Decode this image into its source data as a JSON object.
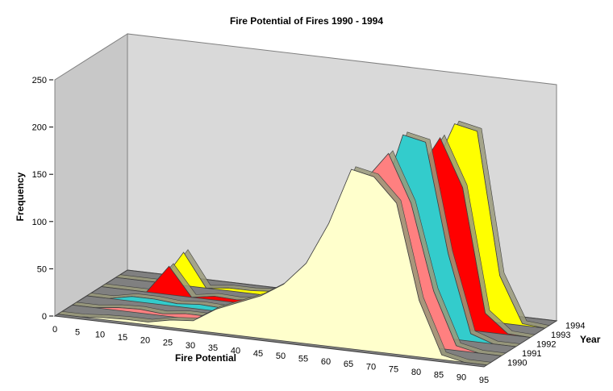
{
  "chart_data": {
    "type": "area",
    "subtype": "3d-area",
    "title": "Fire Potential of Fires 1990 - 1994",
    "xlabel": "Fire Potential",
    "ylabel": "Frequency",
    "zlabel": "Year",
    "ylim": [
      0,
      250
    ],
    "y_ticks": [
      "0",
      "50",
      "100",
      "150",
      "200",
      "250"
    ],
    "x_ticks": [
      "0",
      "5",
      "10",
      "15",
      "20",
      "25",
      "30",
      "35",
      "40",
      "45",
      "50",
      "55",
      "60",
      "65",
      "70",
      "75",
      "80",
      "85",
      "90",
      "95"
    ],
    "z_ticks": [
      "1990",
      "1991",
      "1992",
      "1993",
      "1994"
    ],
    "x": [
      0,
      5,
      10,
      15,
      20,
      25,
      30,
      35,
      40,
      45,
      50,
      55,
      60,
      65,
      70,
      75,
      80,
      85,
      90,
      95
    ],
    "grid": false,
    "legend": "none",
    "colors": {
      "wall": "#d9d9d9",
      "floor": "#808080",
      "1990": "#ffffcc",
      "1991": "#ff8080",
      "1992": "#33cccc",
      "1993": "#ff0000",
      "1994": "#ffff00"
    },
    "series": [
      {
        "name": "1994",
        "values": [
          0,
          0,
          0,
          35,
          0,
          3,
          3,
          5,
          10,
          15,
          25,
          40,
          60,
          90,
          150,
          205,
          200,
          50,
          2,
          0
        ]
      },
      {
        "name": "1993",
        "values": [
          0,
          0,
          0,
          30,
          0,
          4,
          3,
          6,
          12,
          18,
          28,
          45,
          65,
          100,
          160,
          200,
          150,
          20,
          1,
          0
        ]
      },
      {
        "name": "1992",
        "values": [
          0,
          0,
          5,
          5,
          3,
          5,
          4,
          8,
          15,
          22,
          35,
          55,
          85,
          135,
          210,
          205,
          90,
          8,
          0,
          0
        ]
      },
      {
        "name": "1991",
        "values": [
          0,
          0,
          3,
          4,
          2,
          5,
          5,
          10,
          18,
          28,
          45,
          70,
          110,
          170,
          200,
          150,
          60,
          5,
          0,
          0
        ]
      },
      {
        "name": "1990",
        "values": [
          0,
          0,
          2,
          3,
          3,
          8,
          10,
          25,
          35,
          45,
          60,
          85,
          130,
          190,
          185,
          160,
          60,
          5,
          0,
          0
        ]
      }
    ]
  }
}
